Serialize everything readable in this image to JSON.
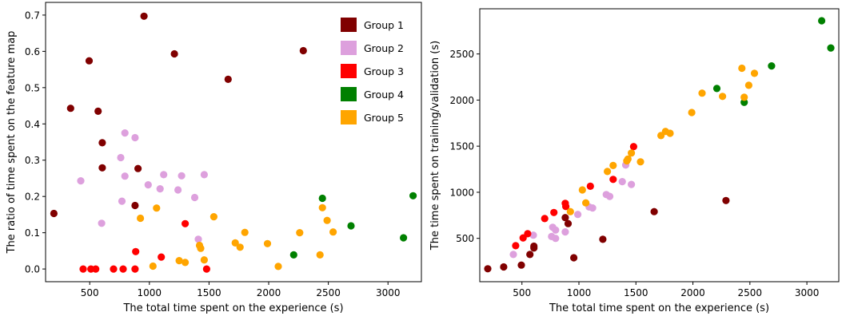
{
  "colors": {
    "Group 1": "#800000",
    "Group 2": "#dda0dd",
    "Group 3": "#ff0000",
    "Group 4": "#008000",
    "Group 5": "#ffa500"
  },
  "chart_data": [
    {
      "type": "scatter",
      "xlabel": "The total time spent on the experience (s)",
      "ylabel": "The ratio of time spent on the feature map",
      "xlim": [
        130,
        3280
      ],
      "ylim": [
        -0.035,
        0.735
      ],
      "xticks": [
        500,
        1000,
        1500,
        2000,
        2500,
        3000
      ],
      "yticks": [
        0.0,
        0.1,
        0.2,
        0.3,
        0.4,
        0.5,
        0.6,
        0.7
      ],
      "ytick_labels": [
        "0.0",
        "0.1",
        "0.2",
        "0.3",
        "0.4",
        "0.5",
        "0.6",
        "0.7"
      ],
      "grid": false,
      "legend": {
        "position": "top-right",
        "entries": [
          "Group 1",
          "Group 2",
          "Group 3",
          "Group 4",
          "Group 5"
        ]
      },
      "series": [
        {
          "name": "Group 1",
          "points": [
            [
              200,
              0.153
            ],
            [
              340,
              0.443
            ],
            [
              495,
              0.574
            ],
            [
              570,
              0.435
            ],
            [
              605,
              0.348
            ],
            [
              605,
              0.279
            ],
            [
              880,
              0.175
            ],
            [
              905,
              0.277
            ],
            [
              955,
              0.697
            ],
            [
              1210,
              0.593
            ],
            [
              1660,
              0.523
            ],
            [
              2290,
              0.602
            ]
          ]
        },
        {
          "name": "Group 2",
          "points": [
            [
              425,
              0.243
            ],
            [
              600,
              0.126
            ],
            [
              760,
              0.307
            ],
            [
              770,
              0.187
            ],
            [
              795,
              0.375
            ],
            [
              795,
              0.256
            ],
            [
              880,
              0.362
            ],
            [
              990,
              0.232
            ],
            [
              1090,
              0.221
            ],
            [
              1120,
              0.26
            ],
            [
              1240,
              0.218
            ],
            [
              1270,
              0.257
            ],
            [
              1380,
              0.197
            ],
            [
              1460,
              0.26
            ],
            [
              1410,
              0.082
            ]
          ]
        },
        {
          "name": "Group 3",
          "points": [
            [
              445,
              0.0
            ],
            [
              510,
              0.0
            ],
            [
              550,
              0.0
            ],
            [
              700,
              0.0
            ],
            [
              780,
              0.0
            ],
            [
              880,
              0.0
            ],
            [
              885,
              0.048
            ],
            [
              1100,
              0.033
            ],
            [
              1300,
              0.125
            ],
            [
              1480,
              0.0
            ]
          ]
        },
        {
          "name": "Group 4",
          "points": [
            [
              2210,
              0.039
            ],
            [
              2450,
              0.195
            ],
            [
              2690,
              0.119
            ],
            [
              3130,
              0.086
            ],
            [
              3210,
              0.202
            ]
          ]
        },
        {
          "name": "Group 5",
          "points": [
            [
              925,
              0.14
            ],
            [
              1030,
              0.008
            ],
            [
              1060,
              0.168
            ],
            [
              1250,
              0.023
            ],
            [
              1300,
              0.018
            ],
            [
              1420,
              0.065
            ],
            [
              1430,
              0.057
            ],
            [
              1460,
              0.025
            ],
            [
              1540,
              0.144
            ],
            [
              1720,
              0.072
            ],
            [
              1760,
              0.06
            ],
            [
              1800,
              0.101
            ],
            [
              1990,
              0.07
            ],
            [
              2080,
              0.007
            ],
            [
              2260,
              0.1
            ],
            [
              2430,
              0.039
            ],
            [
              2450,
              0.169
            ],
            [
              2490,
              0.134
            ],
            [
              2540,
              0.102
            ]
          ]
        }
      ]
    },
    {
      "type": "scatter",
      "xlabel": "The total time spent on the experience (s)",
      "ylabel": "The time spent on training/validation (s)",
      "xlim": [
        130,
        3280
      ],
      "ylim": [
        30,
        2990
      ],
      "xticks": [
        500,
        1000,
        1500,
        2000,
        2500,
        3000
      ],
      "yticks": [
        500,
        1000,
        1500,
        2000,
        2500
      ],
      "ytick_labels": [
        "500",
        "1000",
        "1500",
        "2000",
        "2500"
      ],
      "grid": false,
      "series": [
        {
          "name": "Group 1",
          "points": [
            [
              200,
              170
            ],
            [
              340,
              190
            ],
            [
              495,
              210
            ],
            [
              570,
              325
            ],
            [
              605,
              395
            ],
            [
              605,
              415
            ],
            [
              880,
              725
            ],
            [
              905,
              660
            ],
            [
              955,
              290
            ],
            [
              1210,
              490
            ],
            [
              1660,
              790
            ],
            [
              2290,
              910
            ]
          ]
        },
        {
          "name": "Group 2",
          "points": [
            [
              425,
              325
            ],
            [
              600,
              535
            ],
            [
              760,
              520
            ],
            [
              770,
              620
            ],
            [
              795,
              500
            ],
            [
              795,
              590
            ],
            [
              880,
              570
            ],
            [
              990,
              760
            ],
            [
              1090,
              840
            ],
            [
              1120,
              830
            ],
            [
              1240,
              975
            ],
            [
              1270,
              955
            ],
            [
              1380,
              1115
            ],
            [
              1460,
              1085
            ],
            [
              1410,
              1295
            ]
          ]
        },
        {
          "name": "Group 3",
          "points": [
            [
              445,
              420
            ],
            [
              510,
              505
            ],
            [
              550,
              550
            ],
            [
              700,
              715
            ],
            [
              780,
              780
            ],
            [
              880,
              880
            ],
            [
              885,
              845
            ],
            [
              1100,
              1065
            ],
            [
              1300,
              1140
            ],
            [
              1480,
              1495
            ]
          ]
        },
        {
          "name": "Group 4",
          "points": [
            [
              2210,
              2125
            ],
            [
              2450,
              1975
            ],
            [
              2690,
              2370
            ],
            [
              3130,
              2860
            ],
            [
              3210,
              2565
            ]
          ]
        },
        {
          "name": "Group 5",
          "points": [
            [
              925,
              790
            ],
            [
              1030,
              1025
            ],
            [
              1060,
              885
            ],
            [
              1250,
              1225
            ],
            [
              1300,
              1290
            ],
            [
              1420,
              1340
            ],
            [
              1430,
              1360
            ],
            [
              1460,
              1425
            ],
            [
              1540,
              1330
            ],
            [
              1720,
              1615
            ],
            [
              1760,
              1660
            ],
            [
              1800,
              1640
            ],
            [
              1990,
              1865
            ],
            [
              2080,
              2075
            ],
            [
              2260,
              2040
            ],
            [
              2430,
              2345
            ],
            [
              2450,
              2030
            ],
            [
              2490,
              2160
            ],
            [
              2540,
              2290
            ]
          ]
        }
      ]
    }
  ]
}
